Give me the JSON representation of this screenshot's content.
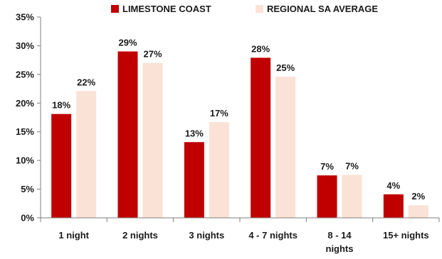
{
  "chart_data": {
    "type": "bar",
    "title": "",
    "xlabel": "",
    "ylabel": "",
    "ylim": [
      0,
      35
    ],
    "yticks": [
      "0%",
      "5%",
      "10%",
      "15%",
      "20%",
      "25%",
      "30%",
      "35%"
    ],
    "ytick_values": [
      0,
      5,
      10,
      15,
      20,
      25,
      30,
      35
    ],
    "categories": [
      [
        "1 night"
      ],
      [
        "2 nights"
      ],
      [
        "3 nights"
      ],
      [
        "4 - 7 nights"
      ],
      [
        "8 - 14",
        "nights"
      ],
      [
        "15+ nights"
      ]
    ],
    "series": [
      {
        "name": "LIMESTONE COAST",
        "color": "#c00000",
        "values": [
          18.1,
          29.0,
          13.2,
          27.9,
          7.4,
          4.1
        ],
        "labels": [
          "18%",
          "29%",
          "13%",
          "28%",
          "7%",
          "4%"
        ]
      },
      {
        "name": "REGIONAL SA AVERAGE",
        "color": "#fbe2d6",
        "values": [
          22.1,
          27.0,
          16.7,
          24.6,
          7.5,
          2.2
        ],
        "labels": [
          "22%",
          "27%",
          "17%",
          "25%",
          "7%",
          "2%"
        ]
      }
    ],
    "grid": false,
    "legend_position": "top"
  }
}
